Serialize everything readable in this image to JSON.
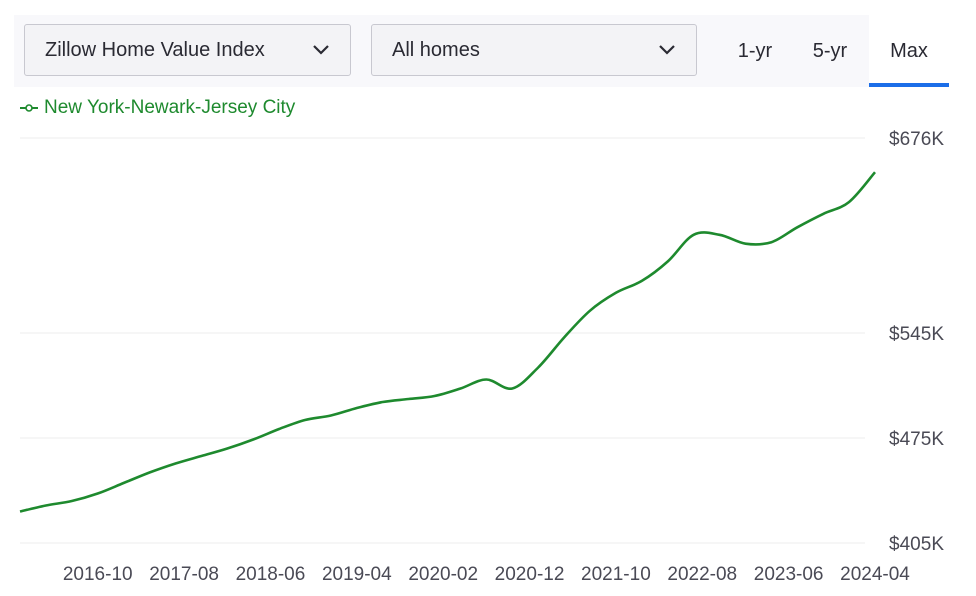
{
  "toolbar": {
    "metric_select": "Zillow Home Value Index",
    "homes_select": "All homes",
    "ranges": [
      "1-yr",
      "5-yr",
      "Max"
    ],
    "active_range": "Max"
  },
  "colors": {
    "series": "#1e8a2e",
    "active_tab_underline": "#1c6ee8",
    "grid": "#ececec"
  },
  "chart_data": {
    "type": "line",
    "series": [
      {
        "name": "New York-Newark-Jersey City",
        "x": [
          "2016-01",
          "2016-04",
          "2016-07",
          "2016-10",
          "2017-01",
          "2017-04",
          "2017-07",
          "2017-10",
          "2018-01",
          "2018-04",
          "2018-07",
          "2018-10",
          "2019-01",
          "2019-04",
          "2019-07",
          "2019-10",
          "2020-01",
          "2020-04",
          "2020-07",
          "2020-10",
          "2021-01",
          "2021-04",
          "2021-07",
          "2021-10",
          "2022-01",
          "2022-04",
          "2022-07",
          "2022-10",
          "2023-01",
          "2023-04",
          "2023-07",
          "2023-10",
          "2024-01",
          "2024-04"
        ],
        "values": [
          426,
          430,
          433,
          438,
          445,
          452,
          458,
          463,
          468,
          474,
          481,
          487,
          490,
          495,
          499,
          501,
          503,
          508,
          514,
          508,
          522,
          542,
          560,
          572,
          580,
          593,
          611,
          611,
          605,
          606,
          616,
          625,
          633,
          653
        ]
      }
    ],
    "xticks": [
      "2016-10",
      "2017-08",
      "2018-06",
      "2019-04",
      "2020-02",
      "2020-12",
      "2021-10",
      "2022-08",
      "2023-06",
      "2024-04"
    ],
    "yticks": [
      {
        "value": 405,
        "label": "$405K"
      },
      {
        "value": 475,
        "label": "$475K"
      },
      {
        "value": 545,
        "label": "$545K"
      },
      {
        "value": 676,
        "label": "$676K"
      }
    ],
    "ylim": [
      405,
      676
    ],
    "grid": true,
    "legend_position": "top-left"
  }
}
